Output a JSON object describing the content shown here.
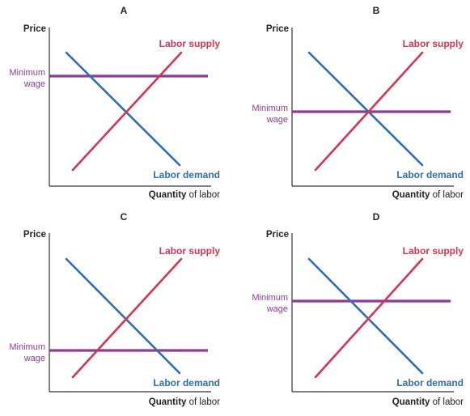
{
  "colors": {
    "supply": "#d8344f",
    "demand": "#2f6db5",
    "minimum_wage": "#8e3a96",
    "axis": "#333333",
    "text": "#222222"
  },
  "labels": {
    "y_axis": "Price",
    "x_axis_bold": "Quantity",
    "x_axis_rest": " of labor",
    "supply": "Labor supply",
    "demand": "Labor demand",
    "min_wage_line1": "Minimum",
    "min_wage_line2": "wage"
  },
  "panels": [
    {
      "id": "A",
      "title": "A",
      "minimum_wage_position": "above equilibrium"
    },
    {
      "id": "B",
      "title": "B",
      "minimum_wage_position": "at equilibrium"
    },
    {
      "id": "C",
      "title": "C",
      "minimum_wage_position": "below equilibrium"
    },
    {
      "id": "D",
      "title": "D",
      "minimum_wage_position": "above equilibrium"
    }
  ]
}
